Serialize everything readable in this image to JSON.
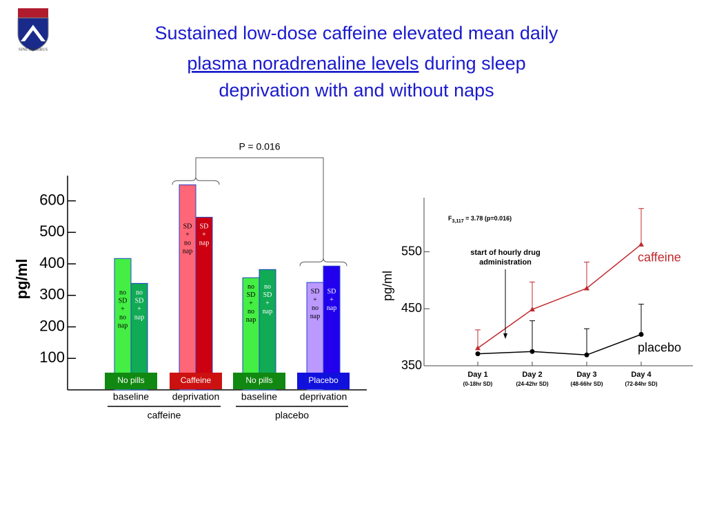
{
  "slide": {
    "title_parts": [
      "Sustained low-dose caffeine elevated mean daily",
      "plasma noradrenaline levels",
      "during sleep",
      "deprivation with and without naps"
    ],
    "logo_motto": "SINE MORIBUS"
  },
  "chart_data": [
    {
      "type": "bar",
      "ylabel": "pg/ml",
      "ylim": [
        0,
        680
      ],
      "yticks": [
        100,
        200,
        300,
        400,
        500,
        600
      ],
      "categories": [
        "baseline",
        "deprivation",
        "baseline",
        "deprivation"
      ],
      "category_boxes": [
        "No pills",
        "Caffeine",
        "No pills",
        "Placebo"
      ],
      "box_colors": [
        "#118811",
        "#cc1111",
        "#118811",
        "#1111dd"
      ],
      "groups": [
        "caffeine",
        "placebo"
      ],
      "series": [
        {
          "colors": [
            "#44ee44",
            "#ff6677",
            "#44ee44",
            "#bb99ff"
          ],
          "values": [
            417,
            651,
            356,
            341
          ],
          "bar_labels": [
            "no SD + no nap",
            "SD + no nap",
            "no SD + no nap",
            "SD + no nap"
          ]
        },
        {
          "colors": [
            "#11aa55",
            "#cc0011",
            "#11aa55",
            "#2200ee"
          ],
          "values": [
            338,
            548,
            382,
            393
          ],
          "bar_labels": [
            "no SD + nap",
            "SD + nap",
            "no SD + nap",
            "SD + nap"
          ]
        }
      ],
      "annotation": "P = 0.016"
    },
    {
      "type": "line",
      "ylabel": "pg/ml",
      "ylim": [
        350,
        645
      ],
      "yticks": [
        350,
        450,
        550
      ],
      "categories": [
        "Day 1",
        "Day 2",
        "Day 3",
        "Day 4"
      ],
      "category_notes": [
        "(0-18hr SD)",
        "(24-42hr SD)",
        "(48-66hr SD)",
        "(72-84hr SD)"
      ],
      "series": [
        {
          "name": "caffeine",
          "color": "#c0282b",
          "marker": "triangle",
          "values": [
            381,
            449,
            486,
            563
          ],
          "errors": [
            32,
            48,
            46,
            63
          ]
        },
        {
          "name": "placebo",
          "color": "#000000",
          "marker": "circle",
          "values": [
            371,
            375,
            369,
            405
          ],
          "errors": [
            null,
            54,
            46,
            53
          ]
        }
      ],
      "stat": {
        "prefix": "F",
        "subscript": "3,117",
        "text": " = 3.78 (p=0.016)"
      },
      "annotation": [
        "start of hourly drug",
        "administration"
      ]
    }
  ]
}
